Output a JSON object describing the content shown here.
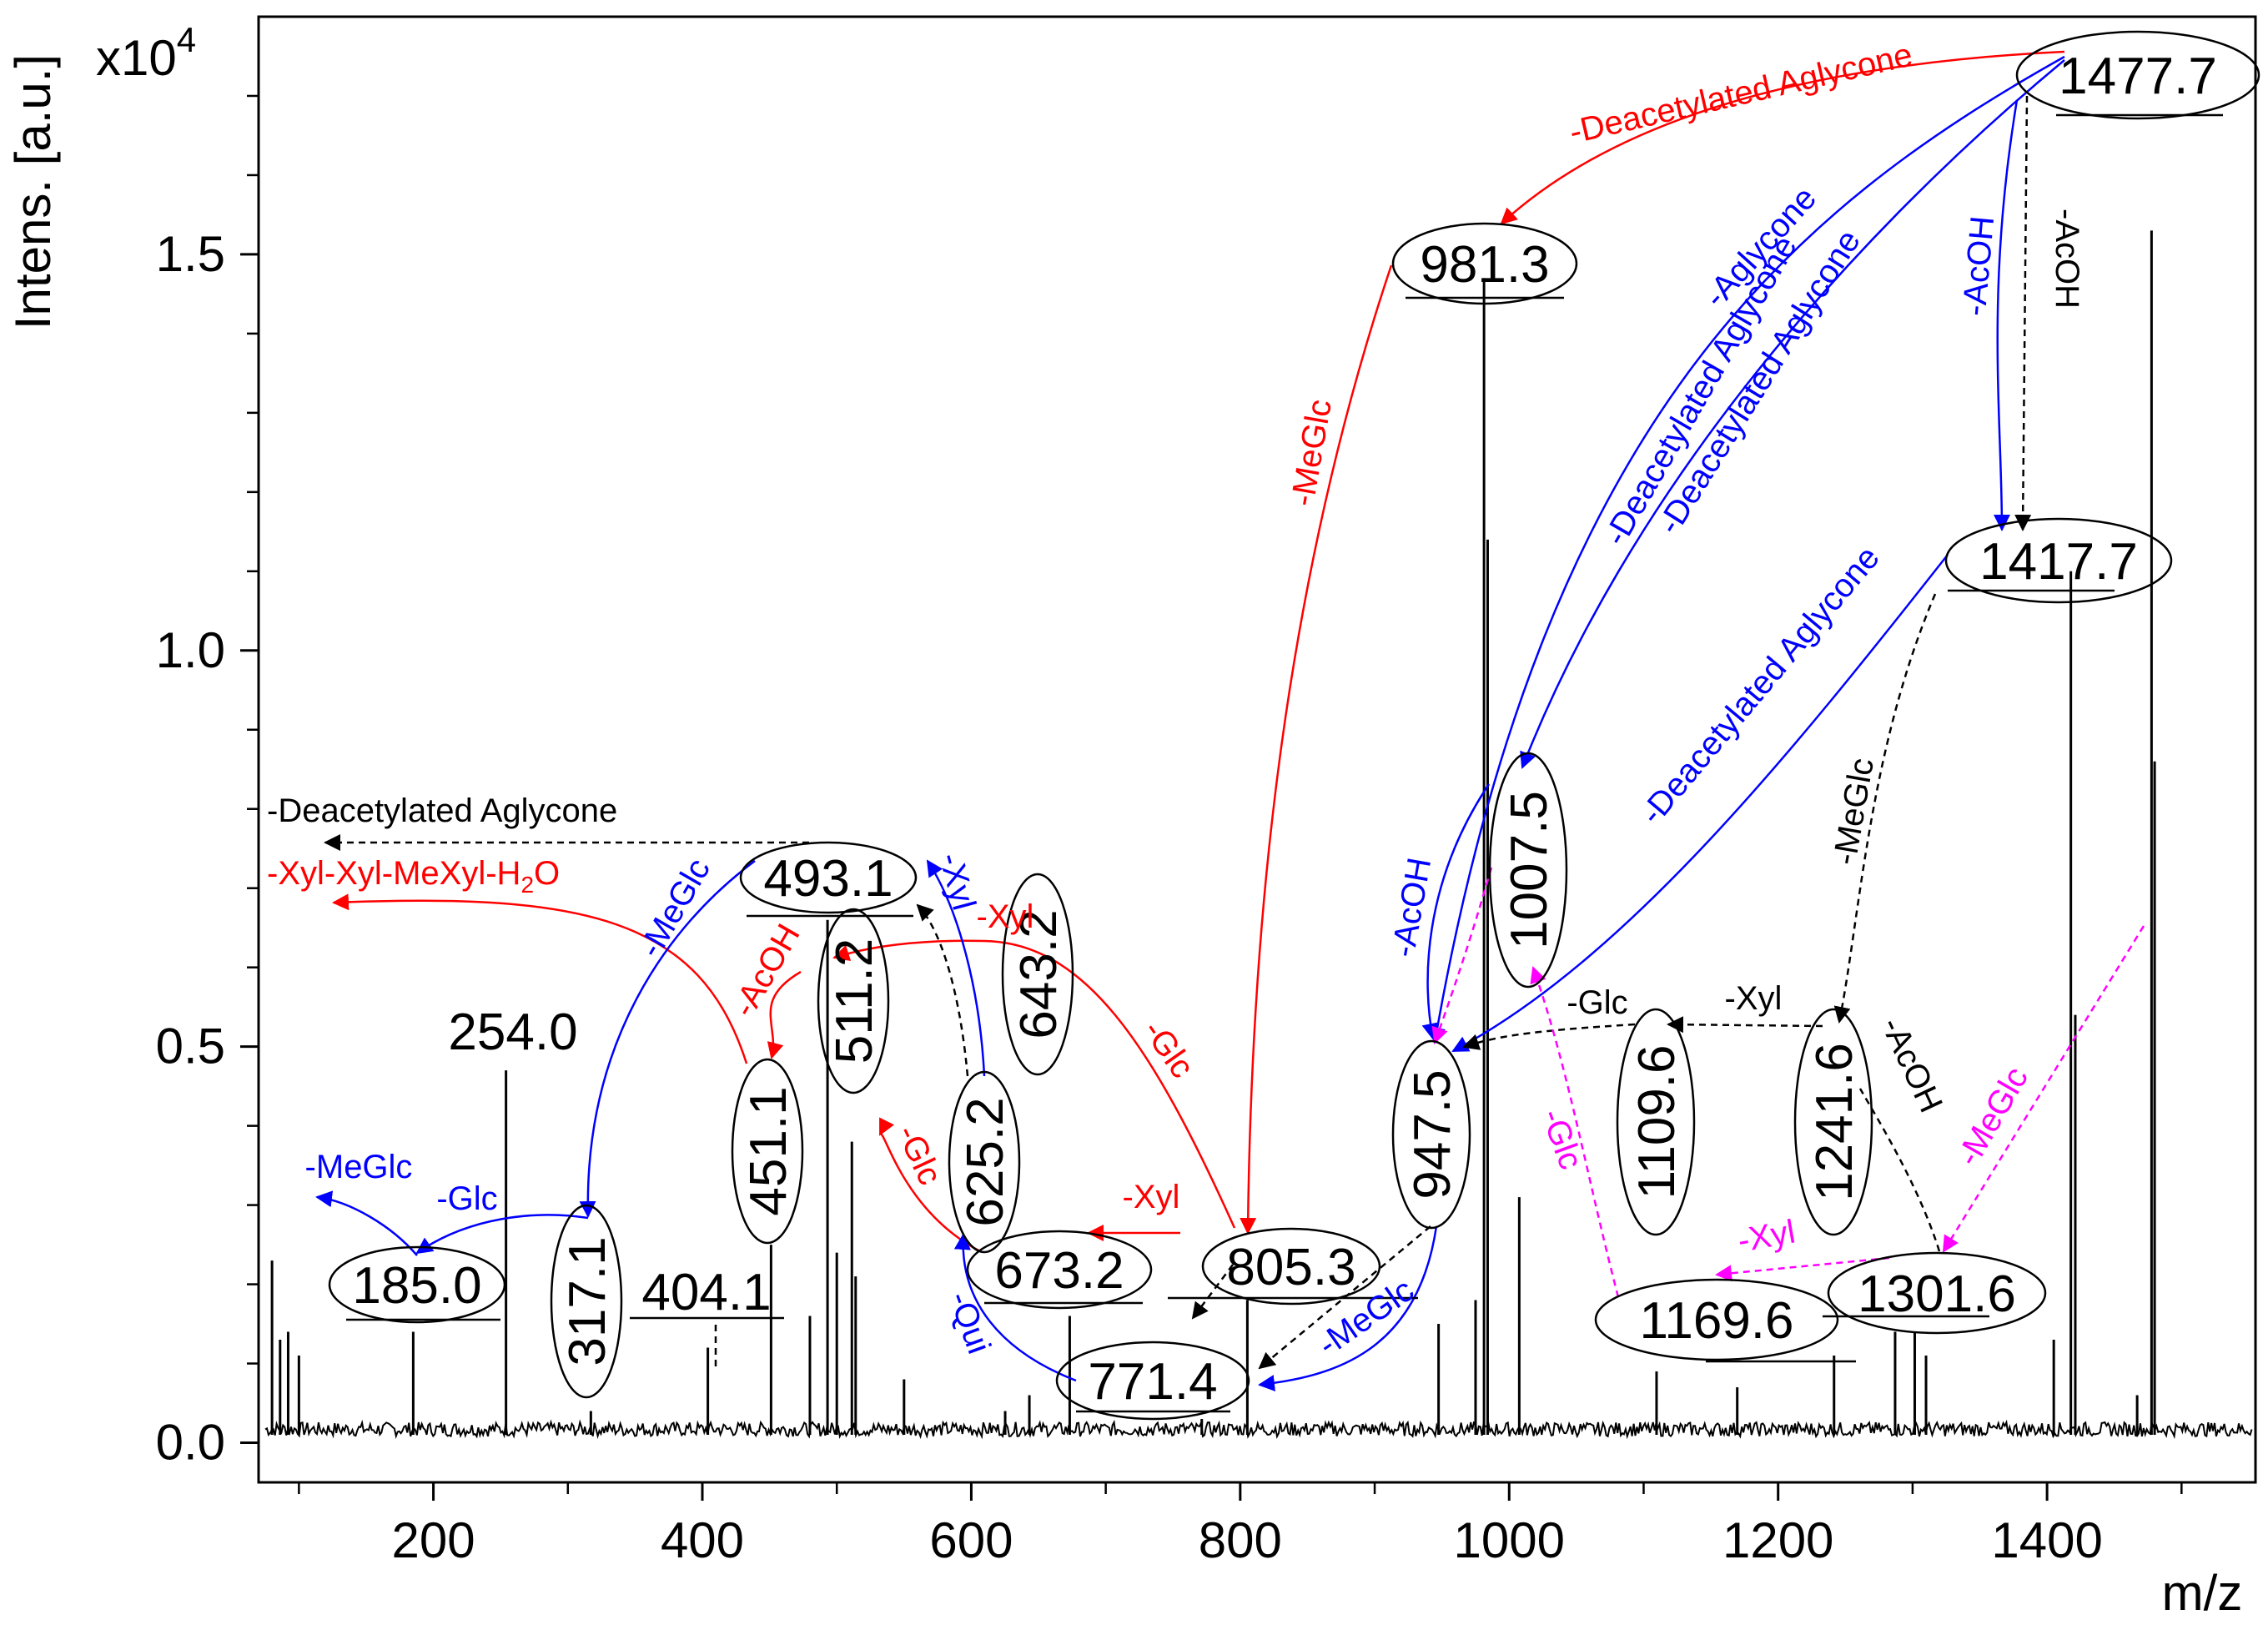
{
  "chart_data": {
    "type": "line",
    "title": "",
    "xlabel": "m/z",
    "ylabel": "Intens. [a.u.]",
    "y_multiplier": "x10",
    "y_multiplier_exp": "4",
    "xlim": [
      70,
      1555
    ],
    "ylim": [
      -0.05,
      1.8
    ],
    "x_ticks": [
      200,
      400,
      600,
      800,
      1000,
      1200,
      1400
    ],
    "y_ticks": [
      0.0,
      0.5,
      1.0,
      1.5
    ],
    "y_tick_labels": [
      "0.0",
      "0.5",
      "1.0",
      "1.5"
    ],
    "peaks": [
      {
        "mz": 80,
        "int": 0.23
      },
      {
        "mz": 86,
        "int": 0.13
      },
      {
        "mz": 92,
        "int": 0.14
      },
      {
        "mz": 100,
        "int": 0.11
      },
      {
        "mz": 185.0,
        "int": 0.14
      },
      {
        "mz": 254.0,
        "int": 0.47
      },
      {
        "mz": 317.1,
        "int": 0.04
      },
      {
        "mz": 404.1,
        "int": 0.12
      },
      {
        "mz": 451.1,
        "int": 0.25
      },
      {
        "mz": 480,
        "int": 0.16
      },
      {
        "mz": 493.1,
        "int": 0.66
      },
      {
        "mz": 500,
        "int": 0.24
      },
      {
        "mz": 511.2,
        "int": 0.38
      },
      {
        "mz": 514,
        "int": 0.21
      },
      {
        "mz": 550,
        "int": 0.08
      },
      {
        "mz": 625.2,
        "int": 0.04
      },
      {
        "mz": 643.2,
        "int": 0.06
      },
      {
        "mz": 673.2,
        "int": 0.16
      },
      {
        "mz": 771.4,
        "int": 0.03
      },
      {
        "mz": 805.3,
        "int": 0.18
      },
      {
        "mz": 947.5,
        "int": 0.15
      },
      {
        "mz": 975,
        "int": 0.18
      },
      {
        "mz": 981.3,
        "int": 1.47
      },
      {
        "mz": 984,
        "int": 1.14
      },
      {
        "mz": 1007.5,
        "int": 0.31
      },
      {
        "mz": 1109.6,
        "int": 0.09
      },
      {
        "mz": 1169.6,
        "int": 0.07
      },
      {
        "mz": 1241.6,
        "int": 0.11
      },
      {
        "mz": 1287,
        "int": 0.14
      },
      {
        "mz": 1301.6,
        "int": 0.14
      },
      {
        "mz": 1310,
        "int": 0.11
      },
      {
        "mz": 1405,
        "int": 0.13
      },
      {
        "mz": 1417.7,
        "int": 1.1
      },
      {
        "mz": 1421,
        "int": 0.54
      },
      {
        "mz": 1467,
        "int": 0.06
      },
      {
        "mz": 1477.7,
        "int": 1.53
      },
      {
        "mz": 1480,
        "int": 0.86
      }
    ],
    "peak_labels": [
      {
        "text": "1477.7",
        "mz": 1477.7
      },
      {
        "text": "981.3",
        "mz": 981.3
      },
      {
        "text": "1417.7",
        "mz": 1417.7
      },
      {
        "text": "1007.5",
        "mz": 1007.5
      },
      {
        "text": "947.5",
        "mz": 947.5
      },
      {
        "text": "1109.6",
        "mz": 1109.6
      },
      {
        "text": "1241.6",
        "mz": 1241.6
      },
      {
        "text": "1169.6",
        "mz": 1169.6
      },
      {
        "text": "1301.6",
        "mz": 1301.6
      },
      {
        "text": "805.3",
        "mz": 805.3
      },
      {
        "text": "771.4",
        "mz": 771.4
      },
      {
        "text": "673.2",
        "mz": 673.2
      },
      {
        "text": "643.2",
        "mz": 643.2
      },
      {
        "text": "625.2",
        "mz": 625.2
      },
      {
        "text": "511.2",
        "mz": 511.2
      },
      {
        "text": "493.1",
        "mz": 493.1
      },
      {
        "text": "451.1",
        "mz": 451.1
      },
      {
        "text": "404.1",
        "mz": 404.1
      },
      {
        "text": "317.1",
        "mz": 317.1
      },
      {
        "text": "185.0",
        "mz": 185.0
      },
      {
        "text": "254.0",
        "mz": 254.0
      }
    ],
    "annotations": [
      {
        "text": "-Deacetylated Aglycone",
        "color": "#ff0000"
      },
      {
        "text": "-Aglycone",
        "color": "#0000ff"
      },
      {
        "text": "-Deacetylated Aglycone",
        "color": "#0000ff"
      },
      {
        "text": "-AcOH",
        "color": "#0000ff"
      },
      {
        "text": "-AcOH",
        "color": "#000000"
      },
      {
        "text": "-MeGlc",
        "color": "#ff0000"
      },
      {
        "text": "-Deacetylated Aglycone",
        "color": "#0000ff"
      },
      {
        "text": "-Deacetylated Aglycone",
        "color": "#0000ff"
      },
      {
        "text": "-MeGlc",
        "color": "#000000"
      },
      {
        "text": "-AcOH",
        "color": "#0000ff"
      },
      {
        "text": "-Glc",
        "color": "#000000"
      },
      {
        "text": "-Xyl",
        "color": "#000000"
      },
      {
        "text": "-AcOH",
        "color": "#000000"
      },
      {
        "text": "-Glc",
        "color": "#ff00ff"
      },
      {
        "text": "-MeGlc",
        "color": "#ff00ff"
      },
      {
        "text": "-Xyl",
        "color": "#ff00ff"
      },
      {
        "text": "-MeGlc",
        "color": "#0000ff"
      },
      {
        "text": "-Deacetylated Aglycone",
        "color": "#000000"
      },
      {
        "text": "-Xyl-Xyl-MeXyl-H",
        "sub": "2",
        "tail": "O",
        "color": "#ff0000"
      },
      {
        "text": "-MeGlc",
        "color": "#0000ff"
      },
      {
        "text": "-Xyl",
        "color": "#0000ff"
      },
      {
        "text": "-AcOH",
        "color": "#ff0000"
      },
      {
        "text": "-Xyl",
        "color": "#ff0000"
      },
      {
        "text": "-Glc",
        "color": "#ff0000"
      },
      {
        "text": "-Glc",
        "color": "#ff0000"
      },
      {
        "text": "-Xyl",
        "color": "#ff0000"
      },
      {
        "text": "-Qui",
        "color": "#0000ff"
      },
      {
        "text": "-MeGlc",
        "color": "#0000ff"
      },
      {
        "text": "-Glc",
        "color": "#0000ff"
      },
      {
        "text": "-Xyl",
        "color": "#0000ff"
      }
    ]
  },
  "colors": {
    "black": "#000000",
    "red": "#ff0000",
    "blue": "#0000ff",
    "magenta": "#ff00ff"
  }
}
